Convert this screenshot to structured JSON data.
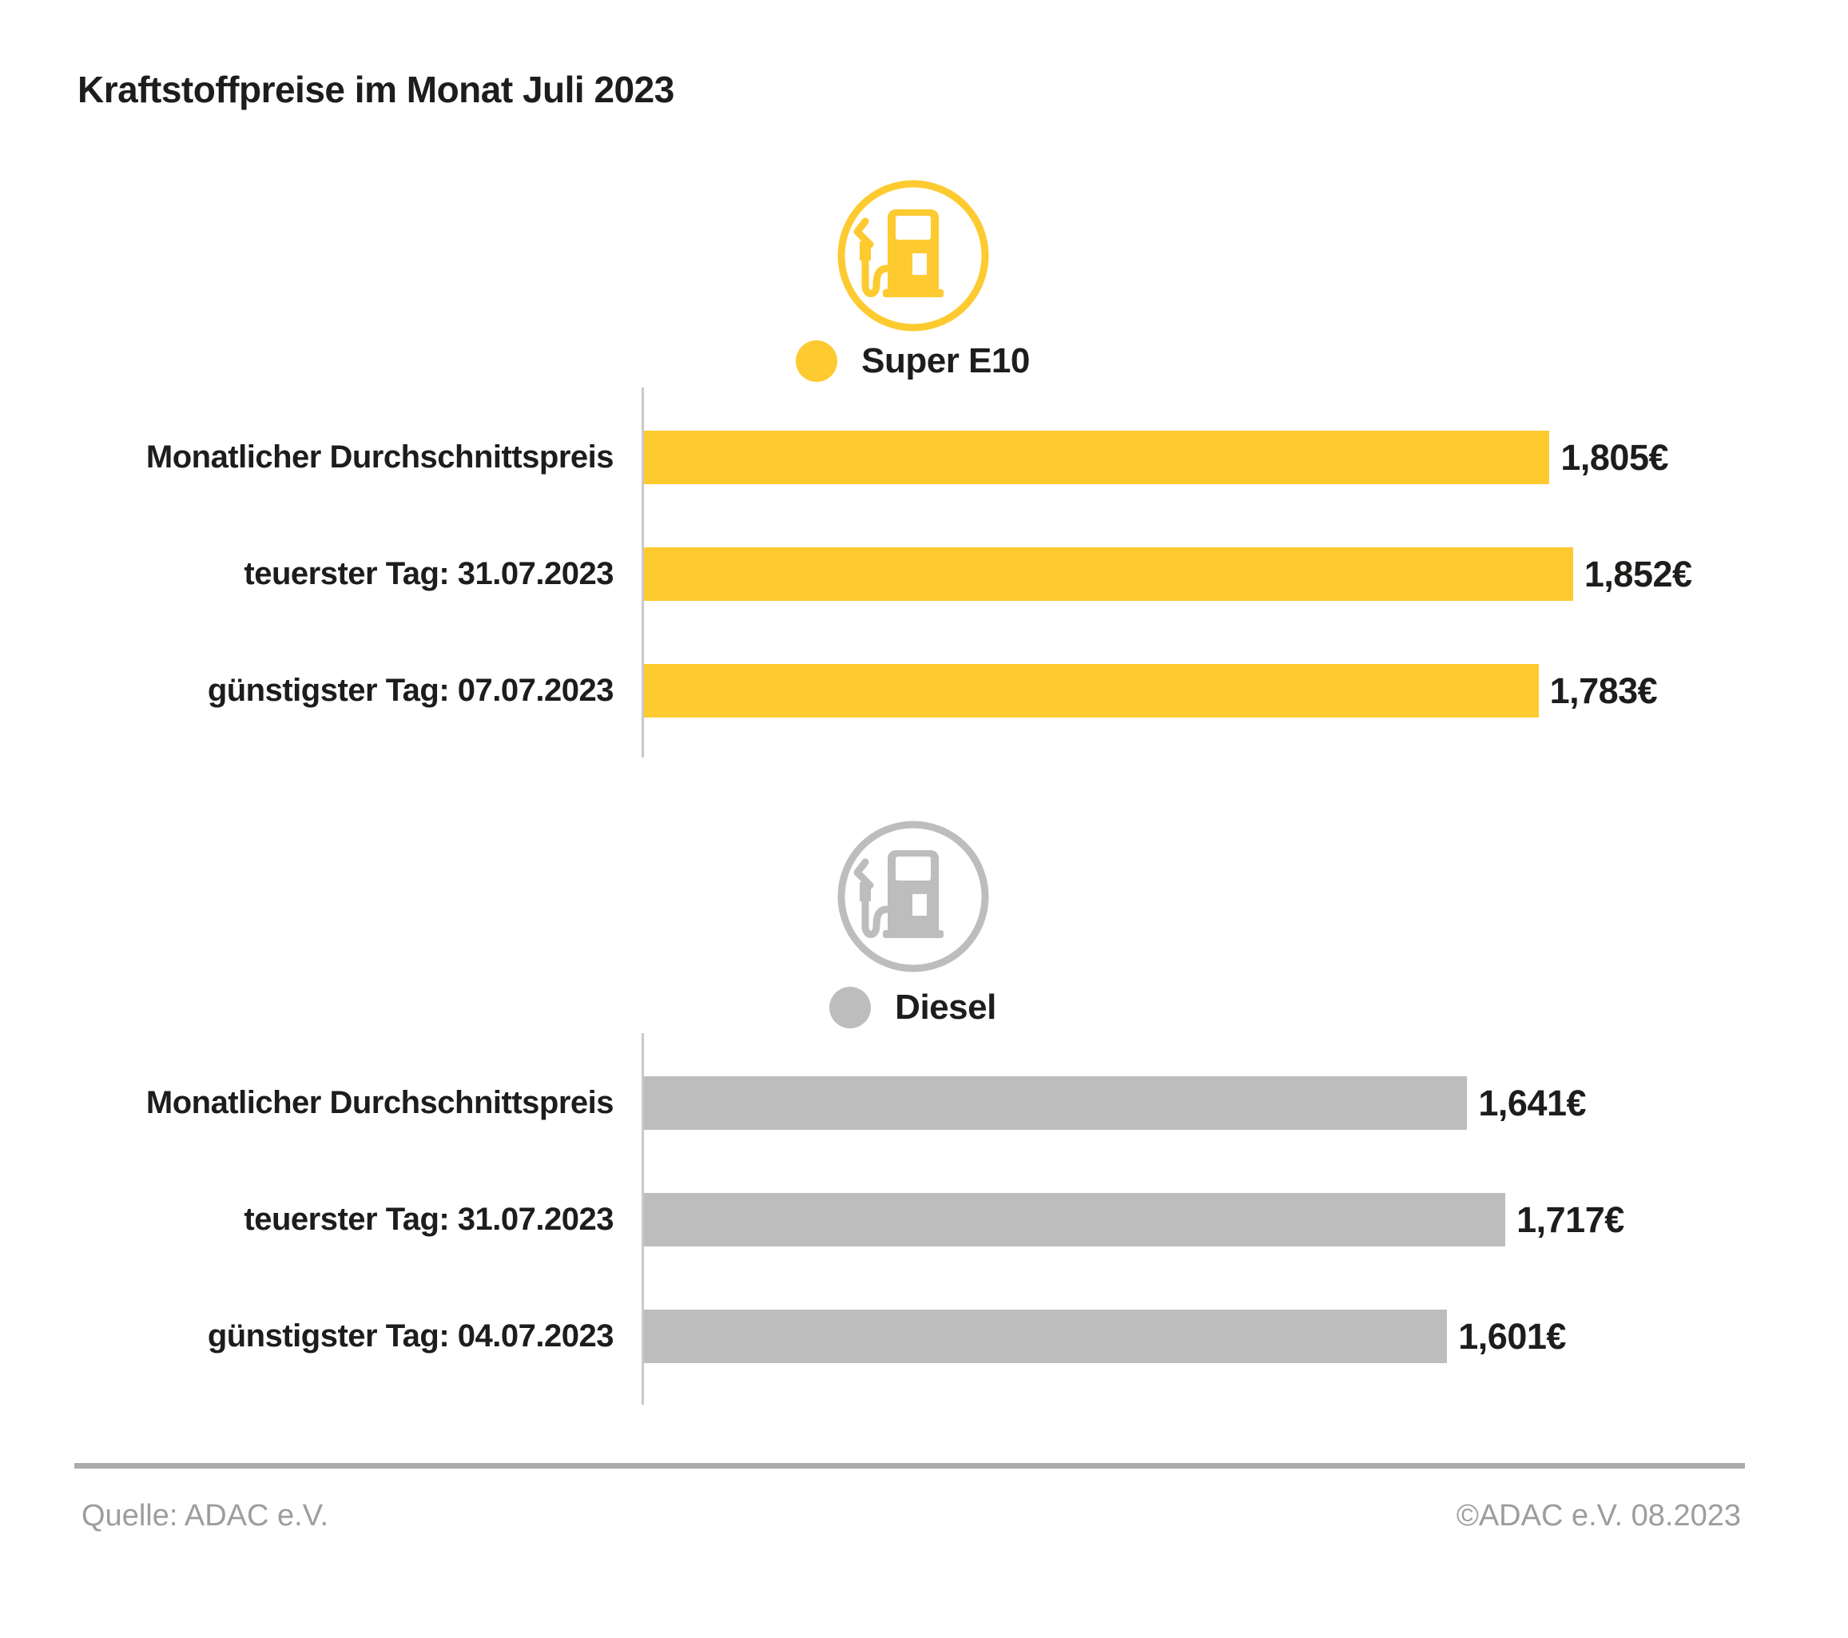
{
  "page": {
    "title": "Kraftstoffpreise im Monat Juli 2023"
  },
  "colors": {
    "super_e10_yellow": "#FDCA30",
    "diesel_gray": "#BDBDBD",
    "text": "#1D1D1B",
    "muted_gray": "#9D9D9D",
    "axis_gray": "#C9C9C9",
    "rule_gray": "#ACACAC"
  },
  "icons": {
    "super_e10": "fuel-pump-icon",
    "diesel": "fuel-pump-icon"
  },
  "chart_data": [
    {
      "type": "bar",
      "orientation": "horizontal",
      "series_name": "Super E10",
      "color": "#FDCA30",
      "categories": [
        "Monatlicher Durchschnittspreis",
        "teuerster Tag: 31.07.2023",
        "günstigster Tag: 07.07.2023"
      ],
      "values": [
        1.805,
        1.852,
        1.783
      ],
      "value_labels": [
        "1,805€",
        "1,852€",
        "1,783€"
      ],
      "xlim": [
        0,
        2.4
      ],
      "grid": false,
      "legend_position": "top-center"
    },
    {
      "type": "bar",
      "orientation": "horizontal",
      "series_name": "Diesel",
      "color": "#BDBDBD",
      "categories": [
        "Monatlicher Durchschnittspreis",
        "teuerster Tag: 31.07.2023",
        "günstigster Tag: 04.07.2023"
      ],
      "values": [
        1.641,
        1.717,
        1.601
      ],
      "value_labels": [
        "1,641€",
        "1,717€",
        "1,601€"
      ],
      "xlim": [
        0,
        2.4
      ],
      "grid": false,
      "legend_position": "top-center"
    }
  ],
  "footer": {
    "source": "Quelle: ADAC e.V.",
    "copyright": "©ADAC e.V. 08.2023"
  }
}
